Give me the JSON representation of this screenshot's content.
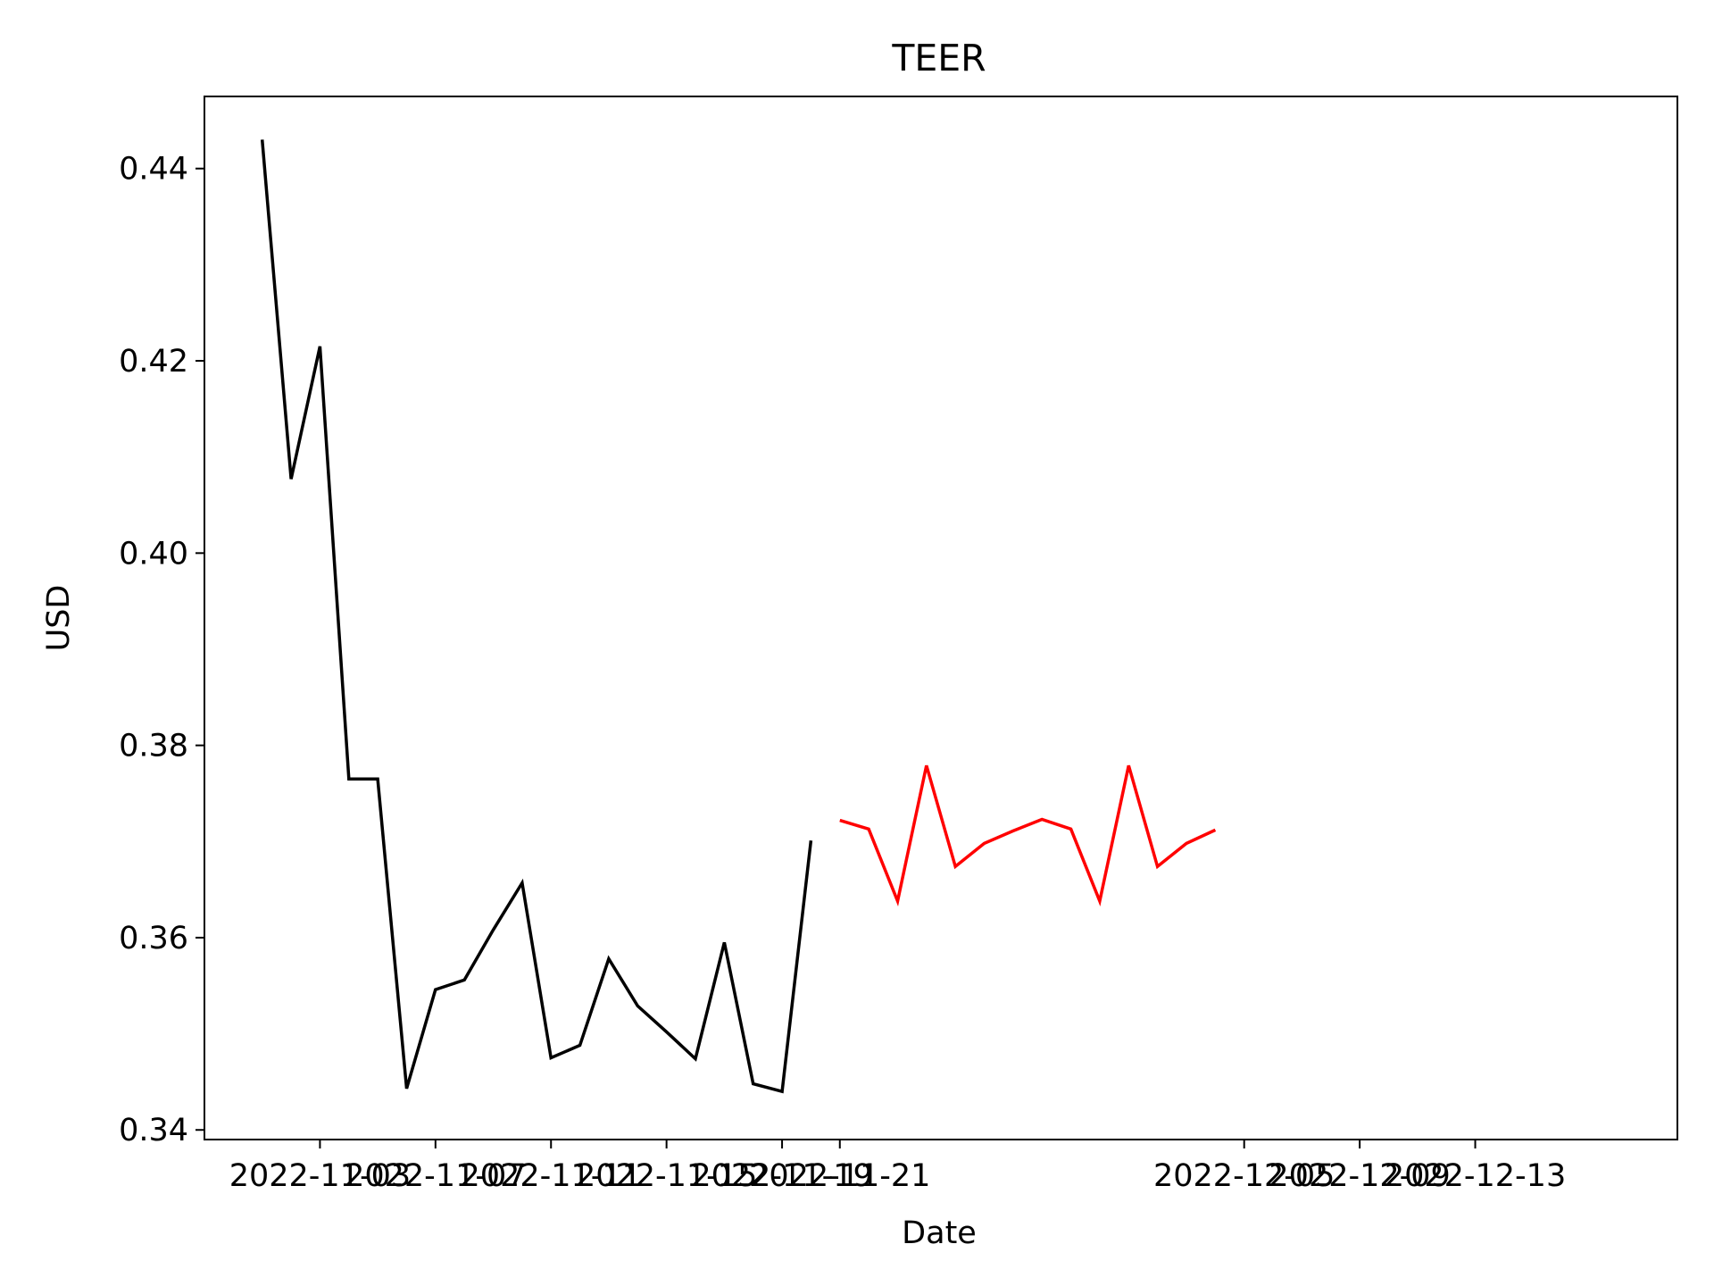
{
  "chart_data": {
    "type": "line",
    "title": "TEER",
    "xlabel": "Date",
    "ylabel": "USD",
    "xlim": [
      "2022-10-30",
      "2022-12-20"
    ],
    "ylim": [
      0.339,
      0.4475
    ],
    "grid": false,
    "x_ticks": [
      "2022-11-03",
      "2022-11-07",
      "2022-11-11",
      "2022-11-15",
      "2022-11-19",
      "2022-11-21",
      "2022-12-05",
      "2022-12-09",
      "2022-12-13"
    ],
    "x_tick_labels": [
      "2022-11-03",
      "2022-11-07",
      "2022-11-11",
      "2022-11-15",
      "2022-11-19",
      "2022-11-21",
      "2022-12-05",
      "2022-12-09",
      "2022-12-13"
    ],
    "y_ticks": [
      0.34,
      0.36,
      0.38,
      0.4,
      0.42,
      0.44
    ],
    "y_tick_labels": [
      "0.34",
      "0.36",
      "0.38",
      "0.40",
      "0.42",
      "0.44"
    ],
    "series": [
      {
        "color": "#000000",
        "points": [
          {
            "x": "2022-11-01",
            "y": 0.443
          },
          {
            "x": "2022-11-02",
            "y": 0.4077
          },
          {
            "x": "2022-11-03",
            "y": 0.4215
          },
          {
            "x": "2022-11-04",
            "y": 0.3765
          },
          {
            "x": "2022-11-05",
            "y": 0.3765
          },
          {
            "x": "2022-11-06",
            "y": 0.3443
          },
          {
            "x": "2022-11-07",
            "y": 0.3546
          },
          {
            "x": "2022-11-08",
            "y": 0.3556
          },
          {
            "x": "2022-11-09",
            "y": 0.3608
          },
          {
            "x": "2022-11-10",
            "y": 0.3657
          },
          {
            "x": "2022-11-11",
            "y": 0.3475
          },
          {
            "x": "2022-11-12",
            "y": 0.3488
          },
          {
            "x": "2022-11-13",
            "y": 0.3578
          },
          {
            "x": "2022-11-14",
            "y": 0.3529
          },
          {
            "x": "2022-11-15",
            "y": 0.3502
          },
          {
            "x": "2022-11-16",
            "y": 0.3474
          },
          {
            "x": "2022-11-17",
            "y": 0.3595
          },
          {
            "x": "2022-11-18",
            "y": 0.3448
          },
          {
            "x": "2022-11-19",
            "y": 0.344
          },
          {
            "x": "2022-11-20",
            "y": 0.3701
          }
        ]
      },
      {
        "color": "#ff0000",
        "points": [
          {
            "x": "2022-11-21",
            "y": 0.3722
          },
          {
            "x": "2022-11-22",
            "y": 0.3713
          },
          {
            "x": "2022-11-23",
            "y": 0.3638
          },
          {
            "x": "2022-11-24",
            "y": 0.3779
          },
          {
            "x": "2022-11-25",
            "y": 0.3674
          },
          {
            "x": "2022-11-26",
            "y": 0.3698
          },
          {
            "x": "2022-11-27",
            "y": 0.3711
          },
          {
            "x": "2022-11-28",
            "y": 0.3723
          },
          {
            "x": "2022-11-29",
            "y": 0.3713
          },
          {
            "x": "2022-11-30",
            "y": 0.3638
          },
          {
            "x": "2022-12-01",
            "y": 0.3779
          },
          {
            "x": "2022-12-02",
            "y": 0.3674
          },
          {
            "x": "2022-12-03",
            "y": 0.3698
          },
          {
            "x": "2022-12-04",
            "y": 0.3712
          }
        ]
      }
    ]
  }
}
